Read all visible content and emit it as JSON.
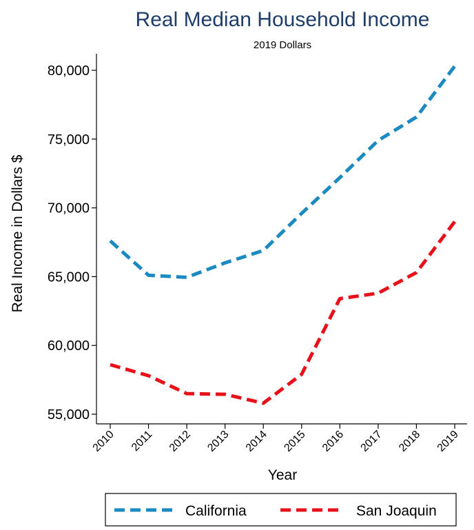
{
  "chart_data": {
    "type": "line",
    "title": "Real Median Household Income",
    "subtitle": "2019 Dollars",
    "xlabel": "Year",
    "ylabel": "Real Income in Dollars $",
    "x": [
      "2010",
      "2011",
      "2012",
      "2013",
      "2014",
      "2015",
      "2016",
      "2017",
      "2018",
      "2019"
    ],
    "y_ticks": [
      "55,000",
      "60,000",
      "65,000",
      "70,000",
      "75,000",
      "80,000"
    ],
    "y_tick_values": [
      55000,
      60000,
      65000,
      70000,
      75000,
      80000
    ],
    "ylim": [
      54000,
      81200
    ],
    "grid": false,
    "legend_position": "bottom",
    "series": [
      {
        "name": "California",
        "color": "#1A8AC0",
        "dash": "dashed",
        "values": [
          67600,
          65100,
          64950,
          66000,
          66900,
          69600,
          72200,
          74900,
          76600,
          80300
        ]
      },
      {
        "name": "San Joaquin",
        "color": "#E8111A",
        "dash": "dashed",
        "values": [
          58600,
          57800,
          56500,
          56450,
          55800,
          57900,
          63400,
          63800,
          65300,
          69000
        ]
      }
    ],
    "title_color": "#1F3D6B"
  }
}
